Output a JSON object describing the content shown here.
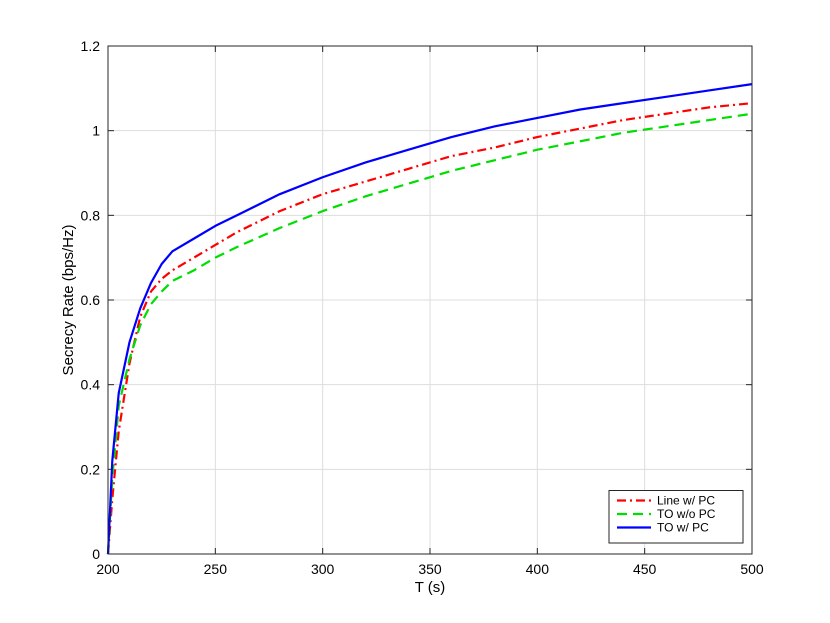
{
  "chart_data": {
    "type": "line",
    "title": "",
    "xlabel": "T (s)",
    "ylabel": "Secrecy Rate (bps/Hz)",
    "xlim": [
      200,
      500
    ],
    "ylim": [
      0,
      1.2
    ],
    "xticks": [
      200,
      250,
      300,
      350,
      400,
      450,
      500
    ],
    "yticks": [
      0,
      0.2,
      0.4,
      0.6,
      0.8,
      1,
      1.2
    ],
    "xtick_labels": [
      "200",
      "250",
      "300",
      "350",
      "400",
      "450",
      "500"
    ],
    "ytick_labels": [
      "0",
      "0.2",
      "0.4",
      "0.6",
      "0.8",
      "1",
      "1.2"
    ],
    "grid": true,
    "legend_position": "bottom-right",
    "x": [
      200,
      202,
      205,
      210,
      215,
      220,
      225,
      230,
      240,
      250,
      260,
      280,
      300,
      320,
      340,
      360,
      380,
      400,
      420,
      440,
      460,
      480,
      500
    ],
    "series": [
      {
        "name": "Line w/ PC",
        "color": "#ff0000",
        "style": "dashdot",
        "values": [
          0.0,
          0.13,
          0.29,
          0.45,
          0.56,
          0.62,
          0.65,
          0.67,
          0.7,
          0.73,
          0.76,
          0.81,
          0.85,
          0.88,
          0.91,
          0.94,
          0.96,
          0.985,
          1.005,
          1.025,
          1.04,
          1.055,
          1.065
        ]
      },
      {
        "name": "TO w/o PC",
        "color": "#00dd00",
        "style": "dashed",
        "values": [
          0.0,
          0.18,
          0.35,
          0.46,
          0.54,
          0.59,
          0.62,
          0.645,
          0.67,
          0.7,
          0.725,
          0.77,
          0.81,
          0.845,
          0.875,
          0.905,
          0.93,
          0.955,
          0.975,
          0.995,
          1.01,
          1.025,
          1.04
        ]
      },
      {
        "name": "TO w/ PC",
        "color": "#0000ff",
        "style": "solid",
        "values": [
          0.0,
          0.22,
          0.38,
          0.5,
          0.58,
          0.64,
          0.685,
          0.715,
          0.745,
          0.775,
          0.8,
          0.85,
          0.89,
          0.925,
          0.955,
          0.985,
          1.01,
          1.03,
          1.05,
          1.065,
          1.08,
          1.095,
          1.11
        ]
      }
    ]
  }
}
